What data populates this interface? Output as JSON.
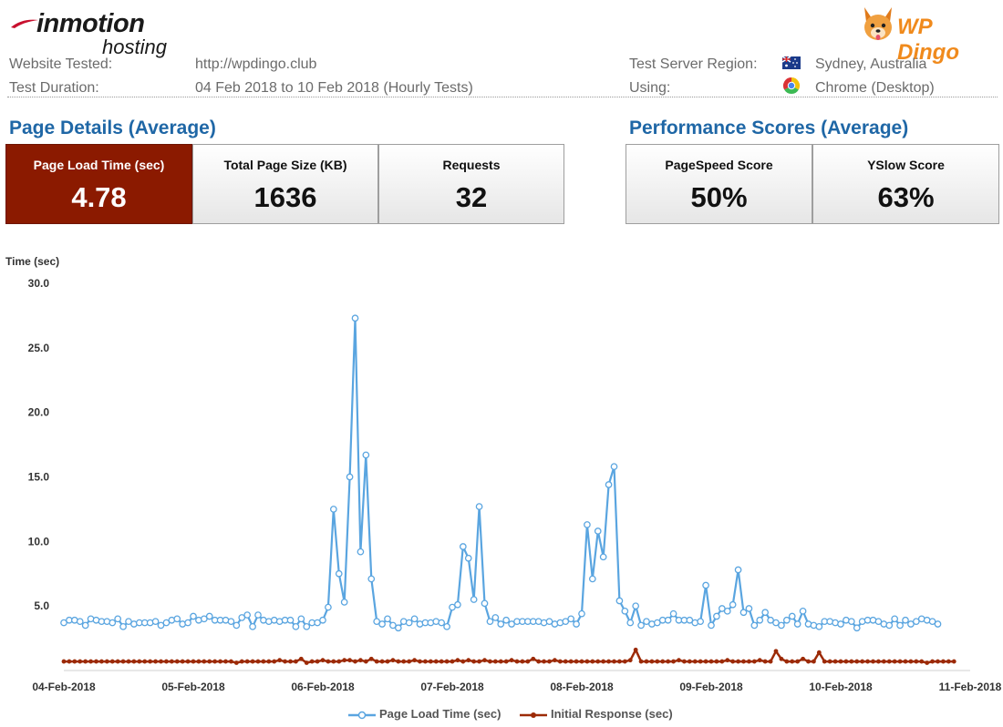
{
  "brand": {
    "inmotion_line1": "inmotion",
    "inmotion_line2": "hosting",
    "dingo_text": "WP Dingo",
    "colors": {
      "swoosh": "#c8102e",
      "dingo": "#f08a1c"
    }
  },
  "info": {
    "website_label": "Website Tested:",
    "website_value": "http://wpdingo.club",
    "duration_label": "Test Duration:",
    "duration_value": "04 Feb 2018 to 10 Feb 2018 (Hourly Tests)",
    "region_label": "Test Server Region:",
    "region_value": "Sydney, Australia",
    "using_label": "Using:",
    "using_value": "Chrome (Desktop)",
    "region_icon": "australia-flag-icon",
    "using_icon": "chrome-icon"
  },
  "page_details": {
    "title": "Page Details (Average)",
    "cards": [
      {
        "label": "Page Load Time (sec)",
        "value": "4.78"
      },
      {
        "label": "Total Page Size (KB)",
        "value": "1636"
      },
      {
        "label": "Requests",
        "value": "32"
      }
    ]
  },
  "performance": {
    "title": "Performance Scores (Average)",
    "cards": [
      {
        "label": "PageSpeed Score",
        "value": "50%"
      },
      {
        "label": "YSlow Score",
        "value": "63%"
      }
    ]
  },
  "chart_data": {
    "type": "line",
    "ylabel": "Time (sec)",
    "ylim": [
      0,
      30
    ],
    "yticks": [
      "30.0",
      "25.0",
      "20.0",
      "15.0",
      "10.0",
      "5.0"
    ],
    "ytick_values": [
      30,
      25,
      20,
      15,
      10,
      5
    ],
    "xticks": [
      "04-Feb-2018",
      "05-Feb-2018",
      "06-Feb-2018",
      "07-Feb-2018",
      "08-Feb-2018",
      "09-Feb-2018",
      "10-Feb-2018",
      "11-Feb-2018"
    ],
    "xlim": [
      "2018-02-04",
      "2018-02-11"
    ],
    "grid": false,
    "legend_position": "bottom",
    "series": [
      {
        "name": "Page Load Time (sec)",
        "color": "#5aa5e0",
        "marker": "open-circle",
        "values": [
          3.7,
          3.9,
          3.9,
          3.8,
          3.5,
          4.0,
          3.9,
          3.8,
          3.8,
          3.7,
          4.0,
          3.4,
          3.8,
          3.6,
          3.7,
          3.7,
          3.7,
          3.8,
          3.5,
          3.7,
          3.9,
          4.0,
          3.6,
          3.7,
          4.2,
          3.9,
          4.0,
          4.2,
          3.9,
          3.9,
          3.9,
          3.8,
          3.5,
          4.1,
          4.3,
          3.4,
          4.3,
          3.9,
          3.8,
          3.9,
          3.8,
          3.9,
          3.9,
          3.4,
          4.0,
          3.4,
          3.7,
          3.7,
          3.9,
          4.9,
          12.5,
          7.5,
          5.3,
          15.0,
          27.3,
          9.2,
          16.7,
          7.1,
          3.8,
          3.6,
          4.0,
          3.5,
          3.3,
          3.8,
          3.7,
          4.0,
          3.6,
          3.7,
          3.7,
          3.8,
          3.7,
          3.4,
          4.9,
          5.1,
          9.6,
          8.7,
          5.5,
          12.7,
          5.2,
          3.8,
          4.1,
          3.6,
          3.9,
          3.6,
          3.8,
          3.8,
          3.8,
          3.8,
          3.8,
          3.7,
          3.8,
          3.6,
          3.7,
          3.8,
          4.0,
          3.6,
          4.4,
          11.3,
          7.1,
          10.8,
          8.8,
          14.4,
          15.8,
          5.4,
          4.6,
          3.7,
          5.0,
          3.5,
          3.8,
          3.6,
          3.7,
          3.9,
          3.9,
          4.4,
          3.9,
          3.9,
          3.9,
          3.7,
          3.8,
          6.6,
          3.5,
          4.2,
          4.8,
          4.6,
          5.1,
          7.8,
          4.5,
          4.8,
          3.5,
          3.9,
          4.5,
          3.9,
          3.7,
          3.5,
          3.9,
          4.2,
          3.6,
          4.6,
          3.6,
          3.5,
          3.4,
          3.8,
          3.8,
          3.7,
          3.6,
          3.9,
          3.8,
          3.3,
          3.8,
          3.9,
          3.9,
          3.8,
          3.6,
          3.5,
          4.0,
          3.5,
          3.9,
          3.6,
          3.8,
          4.0,
          3.9,
          3.8,
          3.6
        ]
      },
      {
        "name": "Initial Response (sec)",
        "color": "#9c2a06",
        "marker": "filled-circle",
        "values": [
          0.7,
          0.7,
          0.7,
          0.7,
          0.7,
          0.7,
          0.7,
          0.7,
          0.7,
          0.7,
          0.7,
          0.7,
          0.7,
          0.7,
          0.7,
          0.7,
          0.7,
          0.7,
          0.7,
          0.7,
          0.7,
          0.7,
          0.7,
          0.7,
          0.7,
          0.7,
          0.7,
          0.7,
          0.7,
          0.7,
          0.7,
          0.7,
          0.6,
          0.7,
          0.7,
          0.7,
          0.7,
          0.7,
          0.7,
          0.7,
          0.8,
          0.7,
          0.7,
          0.7,
          0.9,
          0.6,
          0.7,
          0.7,
          0.8,
          0.7,
          0.7,
          0.7,
          0.8,
          0.8,
          0.7,
          0.8,
          0.7,
          0.9,
          0.7,
          0.7,
          0.7,
          0.8,
          0.7,
          0.7,
          0.7,
          0.8,
          0.7,
          0.7,
          0.7,
          0.7,
          0.7,
          0.7,
          0.7,
          0.8,
          0.7,
          0.8,
          0.7,
          0.7,
          0.8,
          0.7,
          0.7,
          0.7,
          0.7,
          0.8,
          0.7,
          0.7,
          0.7,
          0.9,
          0.7,
          0.7,
          0.7,
          0.8,
          0.7,
          0.7,
          0.7,
          0.7,
          0.7,
          0.7,
          0.7,
          0.7,
          0.7,
          0.7,
          0.7,
          0.7,
          0.7,
          0.8,
          1.6,
          0.7,
          0.7,
          0.7,
          0.7,
          0.7,
          0.7,
          0.7,
          0.8,
          0.7,
          0.7,
          0.7,
          0.7,
          0.7,
          0.7,
          0.7,
          0.7,
          0.8,
          0.7,
          0.7,
          0.7,
          0.7,
          0.7,
          0.8,
          0.7,
          0.7,
          1.5,
          0.9,
          0.7,
          0.7,
          0.7,
          0.9,
          0.7,
          0.7,
          1.4,
          0.7,
          0.7,
          0.7,
          0.7,
          0.7,
          0.7,
          0.7,
          0.7,
          0.7,
          0.7,
          0.7,
          0.7,
          0.7,
          0.7,
          0.7,
          0.7,
          0.7,
          0.7,
          0.7,
          0.6,
          0.7,
          0.7,
          0.7,
          0.7,
          0.7
        ]
      }
    ]
  }
}
